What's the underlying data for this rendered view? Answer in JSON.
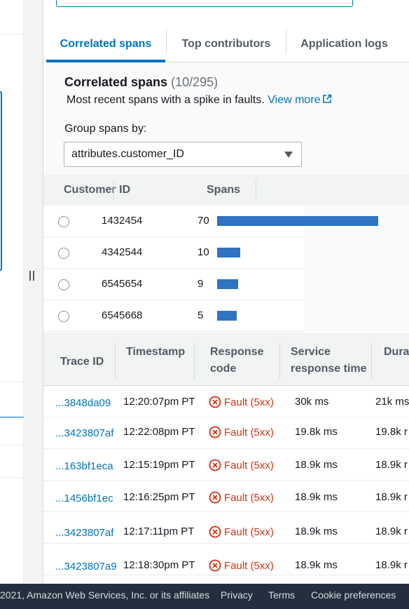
{
  "tabs": [
    {
      "label": "Correlated spans",
      "active": true
    },
    {
      "label": "Top contributors",
      "active": false
    },
    {
      "label": "Application logs",
      "active": false
    }
  ],
  "correlated": {
    "title": "Correlated spans",
    "count": "(10/295)",
    "description": "Most recent spans with a spike in faults.",
    "view_more": "View more"
  },
  "group_by": {
    "label": "Group spans by:",
    "value": "attributes.customer_ID"
  },
  "spans_table": {
    "headers": [
      "Customer ID",
      "Spans"
    ],
    "rows": [
      {
        "customer_id": "1432454",
        "spans": "70"
      },
      {
        "customer_id": "4342544",
        "spans": "10"
      },
      {
        "customer_id": "6545654",
        "spans": "9"
      },
      {
        "customer_id": "6545668",
        "spans": "5"
      }
    ],
    "bar_color": "#2f73c2",
    "bar_max_value": 70
  },
  "trace_table": {
    "headers": {
      "trace_id": "Trace ID",
      "timestamp": "Timestamp",
      "response_code_1": "Response",
      "response_code_2": "code",
      "service_time_1": "Service",
      "service_time_2": "response time",
      "duration": "Dura"
    },
    "rows": [
      {
        "trace_id": "...3848da09",
        "timestamp": "12:20:07pm PT",
        "response": "Fault (5xx)",
        "service_time": "30k ms",
        "duration": "21k ms"
      },
      {
        "trace_id": "...3423807af",
        "timestamp": "12:22:08pm PT",
        "response": "Fault (5xx)",
        "service_time": "19.8k ms",
        "duration": "19.8k r"
      },
      {
        "trace_id": "...163bf1eca",
        "timestamp": "12:15:19pm PT",
        "response": "Fault (5xx)",
        "service_time": "18.9k ms",
        "duration": "18.9k r"
      },
      {
        "trace_id": "...1456bf1ec",
        "timestamp": "12:16:25pm PT",
        "response": "Fault (5xx)",
        "service_time": "18.9k ms",
        "duration": "18.9k r"
      },
      {
        "trace_id": "...3423807af",
        "timestamp": "12:17:11pm PT",
        "response": "Fault (5xx)",
        "service_time": "18.9k ms",
        "duration": "18.9k r"
      },
      {
        "trace_id": "...3423807a9",
        "timestamp": "12:18:30pm PT",
        "response": "Fault (5xx)",
        "service_time": "18.9k ms",
        "duration": "18.9k r"
      }
    ]
  },
  "footer": {
    "copyright": "2021, Amazon Web Services, Inc. or its affiliates",
    "privacy": "Privacy",
    "terms": "Terms",
    "cookies": "Cookie preferences"
  },
  "colors": {
    "accent": "#0073bb",
    "fault": "#d13212",
    "footer_bg": "#232f3e"
  }
}
